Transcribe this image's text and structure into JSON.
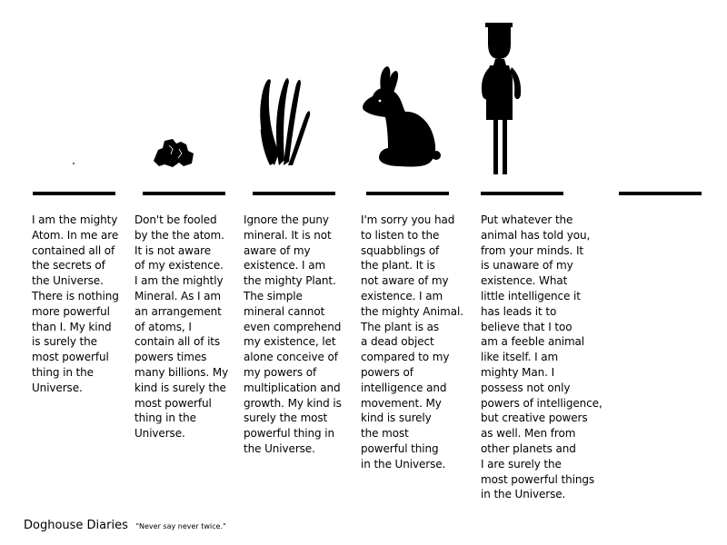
{
  "panels": [
    {
      "figure_icon": "atom-dot-icon",
      "caption_lines": [
        "I am the mighty",
        "Atom. In me are",
        "contained all of",
        "the secrets of",
        "the Universe.",
        "There is nothing",
        "more powerful",
        "than I. My kind",
        "is surely the",
        "most powerful",
        "thing in the",
        "Universe."
      ]
    },
    {
      "figure_icon": "mineral-rock-icon",
      "caption_lines": [
        "Don't be fooled",
        "by the the atom.",
        "It is not aware",
        "of my existence.",
        "I am the mightly",
        "Mineral. As I am",
        "an arrangement",
        "of atoms, I",
        "contain all of its",
        "powers times",
        "many billions. My",
        "kind is surely the",
        "most powerful",
        "thing in the",
        "Universe."
      ]
    },
    {
      "figure_icon": "plant-icon",
      "caption_lines": [
        "Ignore the puny",
        "mineral. It is not",
        "aware of my",
        "existence. I am",
        "the mighty Plant.",
        "The simple",
        "mineral cannot",
        "even comprehend",
        "my existence, let",
        "alone conceive of",
        "my powers of",
        "multiplication and",
        "growth. My kind is",
        "surely the most",
        "powerful thing in",
        "the Universe."
      ]
    },
    {
      "figure_icon": "rabbit-icon",
      "caption_lines": [
        "I'm sorry you had",
        "to listen to the",
        "squabblings of",
        "the plant. It is",
        "not aware of my",
        "existence. I am",
        "the mighty Animal.",
        "The plant is as",
        "a dead object",
        "compared to my",
        "powers of",
        "intelligence and",
        "movement. My",
        "kind is surely",
        "the most",
        "powerful thing",
        "in the Universe."
      ]
    },
    {
      "figure_icon": "stick-man-icon",
      "caption_lines": [
        "Put whatever the",
        "animal has told you,",
        "from your minds. It",
        "is unaware of my",
        "existence. What",
        "little intelligence it",
        "has leads it to",
        "believe that I too",
        "am a feeble animal",
        "like itself. I am",
        "mighty Man. I",
        "possess not only",
        "powers of intelligence,",
        "but creative powers",
        "as well. Men from",
        "other planets and",
        "I are surely the",
        "most powerful things",
        "in the Universe."
      ]
    },
    {
      "figure_icon": "empty-pedestal",
      "caption_lines": []
    }
  ],
  "footer": {
    "brand": "Doghouse Diaries",
    "tagline": "\"Never say never twice.\""
  },
  "colors": {
    "ink": "#000000",
    "background": "#ffffff"
  }
}
